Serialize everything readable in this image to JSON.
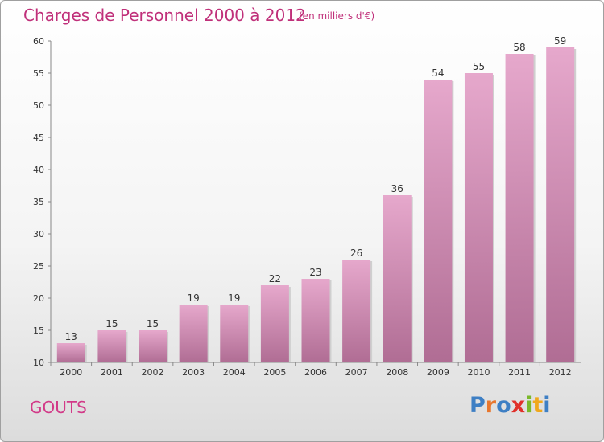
{
  "chart_data": {
    "type": "bar",
    "title": "Charges de Personnel 2000 à 2012",
    "subtitle": "(en milliers d'€)",
    "categories": [
      "2000",
      "2001",
      "2002",
      "2003",
      "2004",
      "2005",
      "2006",
      "2007",
      "2008",
      "2009",
      "2010",
      "2011",
      "2012"
    ],
    "values": [
      13,
      15,
      15,
      19,
      19,
      22,
      23,
      26,
      36,
      54,
      55,
      58,
      59
    ],
    "ylim": [
      10,
      60
    ],
    "yticks": [
      10,
      15,
      20,
      25,
      30,
      35,
      40,
      45,
      50,
      55,
      60
    ],
    "grid": false,
    "xlabel": "",
    "ylabel": ""
  },
  "footer": {
    "commune": "GOUTS",
    "logo_letters": [
      "P",
      "r",
      "o",
      "x",
      "i",
      "t",
      "i"
    ]
  },
  "colors": {
    "bar_top": "#e6a8cc",
    "bar_bottom": "#b06d94",
    "title": "#c0307a",
    "logo": [
      "#3e7fc4",
      "#e8762c",
      "#3e7fc4",
      "#e0302a",
      "#7ab92a",
      "#f0a81c",
      "#3e7fc4"
    ]
  }
}
